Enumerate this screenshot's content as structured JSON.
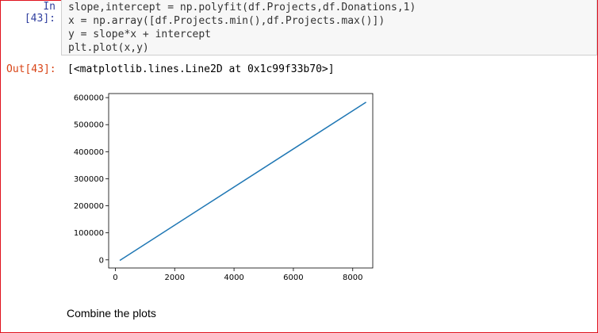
{
  "cell_in": {
    "prompt": "In [43]:",
    "code": [
      "slope,intercept = np.polyfit(df.Projects,df.Donations,1)",
      "x = np.array([df.Projects.min(),df.Projects.max()])",
      "y = slope*x + intercept",
      "plt.plot(x,y)"
    ]
  },
  "cell_out": {
    "prompt": "Out[43]:",
    "text": "[<matplotlib.lines.Line2D at 0x1c99f33b70>]"
  },
  "chart_data": {
    "type": "line",
    "title": "",
    "xlabel": "",
    "ylabel": "",
    "xlim": [
      -225,
      8675
    ],
    "ylim": [
      -30000,
      615000
    ],
    "x_ticks": [
      0,
      2000,
      4000,
      6000,
      8000
    ],
    "y_ticks": [
      0,
      100000,
      200000,
      300000,
      400000,
      500000,
      600000
    ],
    "x_tick_labels": [
      "0",
      "2000",
      "4000",
      "6000",
      "8000"
    ],
    "y_tick_labels": [
      "0",
      "100000",
      "200000",
      "300000",
      "400000",
      "500000",
      "600000"
    ],
    "grid": false,
    "series": [
      {
        "x": [
          150,
          8450
        ],
        "y": [
          -2000,
          583000
        ],
        "color": "#1f77b4"
      }
    ]
  },
  "markdown_cell": {
    "text": "Combine the plots"
  }
}
